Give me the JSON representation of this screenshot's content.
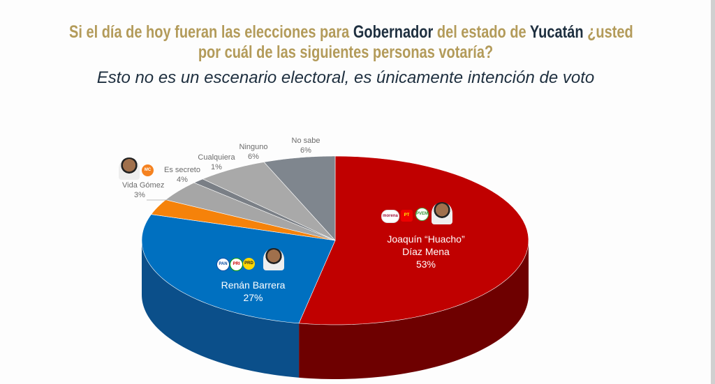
{
  "title": {
    "part1": "Si el día de hoy fueran las elecciones para ",
    "bold1": "Gobernador",
    "part2": "  del estado de ",
    "bold2": "Yucatán",
    "part3": " ¿usted",
    "line2": "por cuál de las siguientes personas votaría?"
  },
  "subtitle": "Esto no es un escenario electoral, es únicamente intención de voto",
  "chart_data": {
    "type": "pie",
    "style": "3d",
    "labels": [
      "Joaquín “Huacho” Díaz Mena",
      "Renán Barrera",
      "Vida Gómez",
      "Es secreto",
      "Cualquiera",
      "Ninguno",
      "No sabe"
    ],
    "values": [
      53,
      27,
      3,
      4,
      1,
      6,
      6
    ],
    "value_labels": [
      "53%",
      "27%",
      "3%",
      "4%",
      "1%",
      "6%",
      "6%"
    ],
    "colors": [
      "#c00000",
      "#0070c0",
      "#f5820a",
      "#a6a6a6",
      "#7a7f86",
      "#a9a9a9",
      "#7f868e"
    ],
    "side_colors": [
      "#6e0000",
      "#0b4f8a",
      "#b05a05",
      "#777777",
      "#555",
      "#777777",
      "#555b62"
    ]
  },
  "party_logos": {
    "diaz": [
      "morena",
      "PT",
      "PVEM"
    ],
    "barrera": [
      "PAN",
      "PRI",
      "PRD"
    ],
    "gomez": [
      "MC"
    ]
  }
}
